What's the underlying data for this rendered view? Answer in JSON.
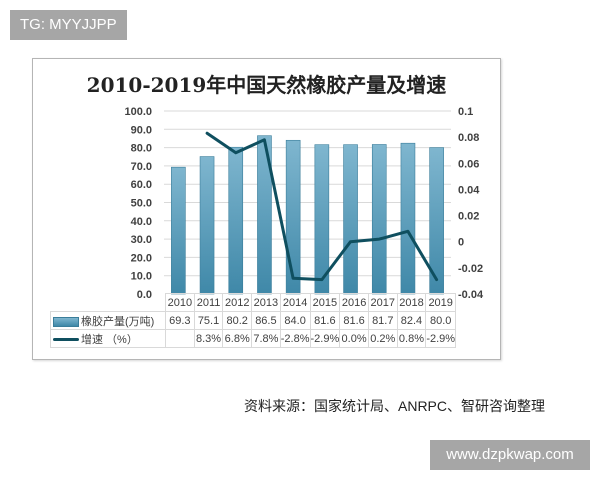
{
  "tag": {
    "text": "TG: MYYJJPP"
  },
  "watermark": {
    "text": "www.dzpkwap.com"
  },
  "source": {
    "text": "资料来源：国家统计局、ANRPC、智研咨询整理"
  },
  "chart": {
    "title": "2010-2019年中国天然橡胶产量及增速",
    "left_ticks": [
      "100.0",
      "90.0",
      "80.0",
      "70.0",
      "60.0",
      "50.0",
      "40.0",
      "30.0",
      "20.0",
      "10.0",
      "0.0"
    ],
    "right_ticks": [
      "0.1",
      "0.08",
      "0.06",
      "0.04",
      "0.02",
      "0",
      "-0.02",
      "-0.04"
    ],
    "legend": {
      "bar": "橡胶产量(万吨)",
      "line": "增速 （%）"
    },
    "colors": {
      "bar_top": "#7fb6cf",
      "bar_bottom": "#3f88a8",
      "line": "#0f4f5f",
      "grid": "#d9d9d9"
    },
    "years": [
      "2010",
      "2011",
      "2012",
      "2013",
      "2014",
      "2015",
      "2016",
      "2017",
      "2018",
      "2019"
    ],
    "production": [
      "69.3",
      "75.1",
      "80.2",
      "86.5",
      "84.0",
      "81.6",
      "81.6",
      "81.7",
      "82.4",
      "80.0"
    ],
    "growth": [
      "",
      "8.3%",
      "6.8%",
      "7.8%",
      "-2.8%",
      "-2.9%",
      "0.0%",
      "0.2%",
      "0.8%",
      "-2.9%"
    ]
  },
  "chart_data": {
    "type": "bar",
    "title": "2010-2019年中国天然橡胶产量及增速",
    "categories": [
      "2010",
      "2011",
      "2012",
      "2013",
      "2014",
      "2015",
      "2016",
      "2017",
      "2018",
      "2019"
    ],
    "series": [
      {
        "name": "橡胶产量(万吨)",
        "type": "bar",
        "axis": "left",
        "values": [
          69.3,
          75.1,
          80.2,
          86.5,
          84.0,
          81.6,
          81.6,
          81.7,
          82.4,
          80.0
        ]
      },
      {
        "name": "增速 （%）",
        "type": "line",
        "axis": "right",
        "values": [
          null,
          0.083,
          0.068,
          0.078,
          -0.028,
          -0.029,
          0.0,
          0.002,
          0.008,
          -0.029
        ]
      }
    ],
    "xlabel": "",
    "ylabel": "",
    "ylim": [
      0,
      100
    ],
    "y2lim": [
      -0.04,
      0.1
    ],
    "grid": true,
    "legend_position": "table-bottom"
  }
}
